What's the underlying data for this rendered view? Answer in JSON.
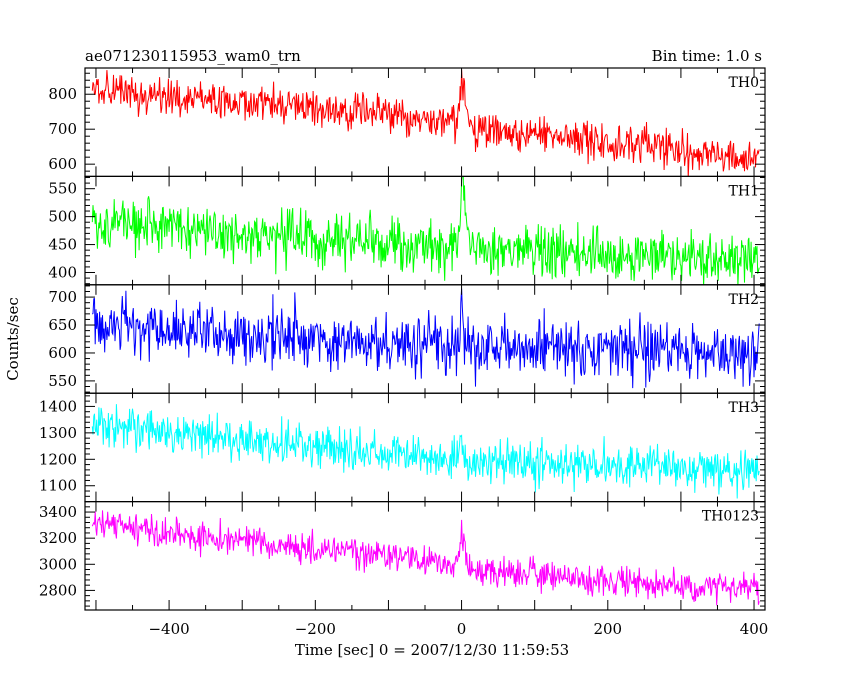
{
  "header": {
    "title": "ae071230115953_wam0_trn",
    "bin_time": "Bin time: 1.0 s"
  },
  "chart_data": {
    "type": "line",
    "xlabel": "Time [sec] 0 = 2007/12/30 11:59:53",
    "ylabel": "Counts/sec",
    "xlim": [
      -515,
      415
    ],
    "x_ticks": [
      -400,
      -200,
      0,
      200,
      400
    ],
    "x_range": [
      -505,
      407
    ],
    "grid": false,
    "burst_time": 0,
    "panels": [
      {
        "name": "TH0",
        "color": "#ff0000",
        "ylim": [
          565,
          875
        ],
        "y_ticks": [
          600,
          700,
          800
        ],
        "trend": [
          [
            -505,
            810
          ],
          [
            -300,
            780
          ],
          [
            -5,
            720
          ],
          [
            0,
            850
          ],
          [
            12,
            705
          ],
          [
            407,
            615
          ]
        ],
        "noise": 26,
        "burst_peak": 870
      },
      {
        "name": "TH1",
        "color": "#00ff00",
        "ylim": [
          378,
          572
        ],
        "y_ticks": [
          400,
          450,
          500,
          550
        ],
        "trend": [
          [
            -505,
            490
          ],
          [
            -300,
            470
          ],
          [
            -5,
            445
          ],
          [
            0,
            560
          ],
          [
            12,
            445
          ],
          [
            407,
            420
          ]
        ],
        "noise": 24,
        "burst_peak": 565
      },
      {
        "name": "TH2",
        "color": "#0000ff",
        "ylim": [
          528,
          722
        ],
        "y_ticks": [
          550,
          600,
          650,
          700
        ],
        "trend": [
          [
            -505,
            650
          ],
          [
            -300,
            635
          ],
          [
            -5,
            612
          ],
          [
            0,
            660
          ],
          [
            12,
            610
          ],
          [
            407,
            600
          ]
        ],
        "noise": 26,
        "burst_peak": 715
      },
      {
        "name": "TH3",
        "color": "#00ffff",
        "ylim": [
          1040,
          1450
        ],
        "y_ticks": [
          1100,
          1200,
          1300,
          1400
        ],
        "trend": [
          [
            -505,
            1330
          ],
          [
            -300,
            1270
          ],
          [
            -5,
            1200
          ],
          [
            0,
            1240
          ],
          [
            12,
            1190
          ],
          [
            407,
            1160
          ]
        ],
        "noise": 40,
        "burst_peak": 1290
      },
      {
        "name": "TH0123",
        "color": "#ff00ff",
        "ylim": [
          2650,
          3480
        ],
        "y_ticks": [
          2800,
          3000,
          3200,
          3400
        ],
        "trend": [
          [
            -505,
            3310
          ],
          [
            -300,
            3190
          ],
          [
            -5,
            2990
          ],
          [
            0,
            3250
          ],
          [
            12,
            2950
          ],
          [
            407,
            2800
          ]
        ],
        "noise": 60,
        "burst_peak": 3340
      }
    ]
  }
}
